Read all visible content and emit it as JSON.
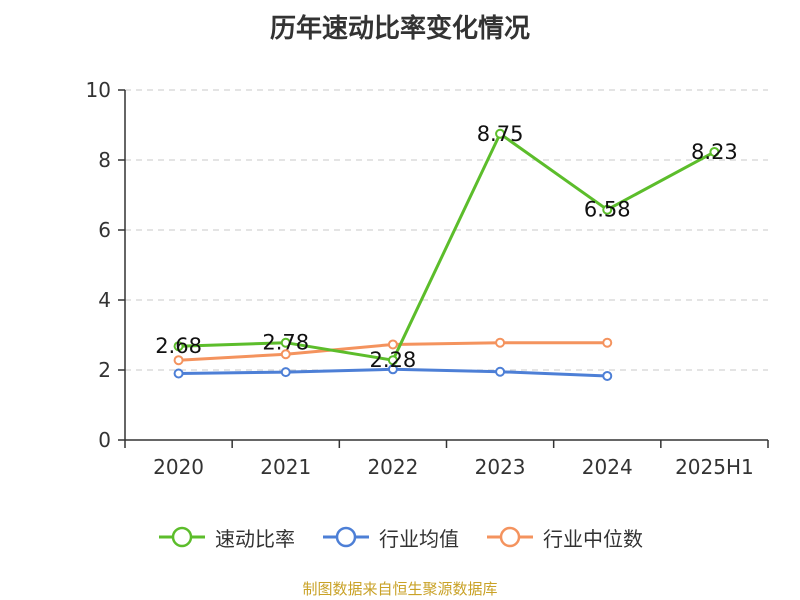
{
  "title": "历年速动比率变化情况",
  "source_note": "制图数据来自恒生聚源数据库",
  "chart_data": {
    "type": "line",
    "title": "历年速动比率变化情况",
    "categories": [
      "2020",
      "2021",
      "2022",
      "2023",
      "2024",
      "2025H1"
    ],
    "ylim": [
      0,
      10
    ],
    "yticks": [
      0,
      2,
      4,
      6,
      8,
      10
    ],
    "grid": true,
    "legend_position": "bottom",
    "series": [
      {
        "name": "速动比率",
        "color": "#5cbd2b",
        "values": [
          2.68,
          2.78,
          2.28,
          8.75,
          6.58,
          8.23
        ],
        "labels": [
          "2.68",
          "2.78",
          "2.28",
          "8.75",
          "6.58",
          "8.23"
        ]
      },
      {
        "name": "行业均值",
        "color": "#4d7fd6",
        "values": [
          1.9,
          1.94,
          2.02,
          1.95,
          1.83,
          null
        ]
      },
      {
        "name": "行业中位数",
        "color": "#f4935e",
        "values": [
          2.28,
          2.45,
          2.73,
          2.78,
          2.78,
          null
        ]
      }
    ]
  }
}
